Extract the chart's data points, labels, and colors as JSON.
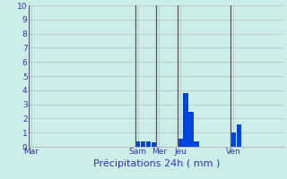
{
  "title": "Précipitations 24h ( mm )",
  "background_color": "#cceee8",
  "bar_color": "#0044dd",
  "grid_color": "#bbbbbb",
  "text_color": "#3333aa",
  "separator_color": "#555566",
  "ylim": [
    0,
    10
  ],
  "yticks": [
    0,
    1,
    2,
    3,
    4,
    5,
    6,
    7,
    8,
    9,
    10
  ],
  "n_bars": 48,
  "bars": [
    0,
    0,
    0,
    0,
    0,
    0,
    0,
    0,
    0,
    0,
    0,
    0,
    0,
    0,
    0,
    0,
    0,
    0,
    0,
    0,
    0.35,
    0.4,
    0.38,
    0.32,
    0,
    0,
    0,
    0,
    0.6,
    3.8,
    2.5,
    0.35,
    0,
    0,
    0,
    0,
    0,
    0,
    1.0,
    1.6,
    0,
    0,
    0,
    0,
    0,
    0,
    0,
    0
  ],
  "day_labels": [
    "Mar",
    "Sam",
    "Mer",
    "Jeu",
    "Ven"
  ],
  "day_x_positions": [
    0,
    20,
    24,
    28,
    38
  ],
  "day_sep_positions": [
    -0.5,
    19.5,
    23.5,
    27.5,
    37.5
  ]
}
